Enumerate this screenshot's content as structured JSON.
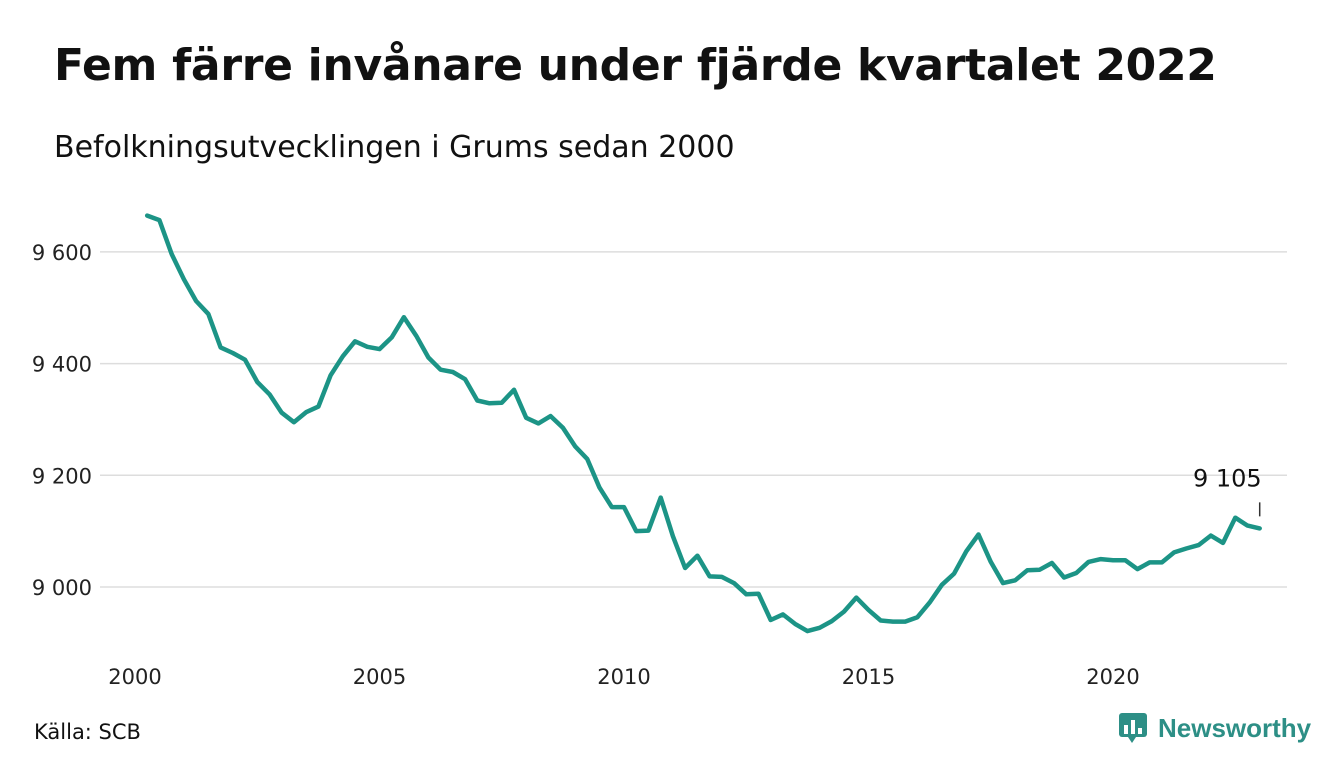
{
  "title": "Fem färre invånare under fjärde kvartalet 2022",
  "subtitle": "Befolkningsutvecklingen i Grums sedan 2000",
  "source": "Källa: SCB",
  "brand": {
    "name": "Newsworthy",
    "icon": "newsworthy-chart-bubble-icon"
  },
  "colors": {
    "line": "#1c9486",
    "grid": "#dddddd",
    "brand": "#2d8f86"
  },
  "chart_data": {
    "type": "line",
    "title": "Fem färre invånare under fjärde kvartalet 2022",
    "subtitle": "Befolkningsutvecklingen i Grums sedan 2000",
    "x_ticks": [
      2000,
      2005,
      2010,
      2015,
      2020
    ],
    "y_ticks": [
      9000,
      9200,
      9400,
      9600
    ],
    "y_tick_labels": [
      "9 000",
      "9 200",
      "9 400",
      "9 600"
    ],
    "xlim": [
      2000,
      2023
    ],
    "ylim": [
      8900,
      9700
    ],
    "grid": "horizontal",
    "last_label": "9 105",
    "series": [
      {
        "x": [
          2000.25,
          2000.5,
          2000.75,
          2001,
          2001.25,
          2001.5,
          2001.75,
          2002,
          2002.25,
          2002.5,
          2002.75,
          2003,
          2003.25,
          2003.5,
          2003.75,
          2004,
          2004.25,
          2004.5,
          2004.75,
          2005,
          2005.25,
          2005.5,
          2005.75,
          2006,
          2006.25,
          2006.5,
          2006.75,
          2007,
          2007.25,
          2007.5,
          2007.75,
          2008,
          2008.25,
          2008.5,
          2008.75,
          2009,
          2009.25,
          2009.5,
          2009.75,
          2010,
          2010.25,
          2010.5,
          2010.75,
          2011,
          2011.25,
          2011.5,
          2011.75,
          2012,
          2012.25,
          2012.5,
          2012.75,
          2013,
          2013.25,
          2013.5,
          2013.75,
          2014,
          2014.25,
          2014.5,
          2014.75,
          2015,
          2015.25,
          2015.5,
          2015.75,
          2016,
          2016.25,
          2016.5,
          2016.75,
          2017,
          2017.25,
          2017.5,
          2017.75,
          2018,
          2018.25,
          2018.5,
          2018.75,
          2019,
          2019.25,
          2019.5,
          2019.75,
          2020,
          2020.25,
          2020.5,
          2020.75,
          2021,
          2021.25,
          2021.5,
          2021.75,
          2022,
          2022.25,
          2022.5,
          2022.75,
          2023
        ],
        "values": [
          9665,
          9657,
          9596,
          9551,
          9512,
          9489,
          9429,
          9419,
          9407,
          9367,
          9345,
          9312,
          9295,
          9313,
          9323,
          9379,
          9413,
          9440,
          9430,
          9426,
          9447,
          9483,
          9450,
          9411,
          9389,
          9385,
          9372,
          9334,
          9329,
          9330,
          9353,
          9303,
          9293,
          9306,
          9285,
          9252,
          9229,
          9178,
          9143,
          9143,
          9100,
          9101,
          9160,
          9091,
          9034,
          9056,
          9019,
          9018,
          9007,
          8987,
          8988,
          8941,
          8951,
          8934,
          8921,
          8927,
          8939,
          8956,
          8981,
          8959,
          8940,
          8938,
          8938,
          8946,
          8972,
          9004,
          9024,
          9064,
          9094,
          9045,
          9007,
          9012,
          9030,
          9031,
          9043,
          9017,
          9025,
          9045,
          9050,
          9048,
          9048,
          9032,
          9044,
          9044,
          9062,
          9069,
          9075,
          9092,
          9079,
          9124,
          9110,
          9105
        ]
      }
    ]
  }
}
